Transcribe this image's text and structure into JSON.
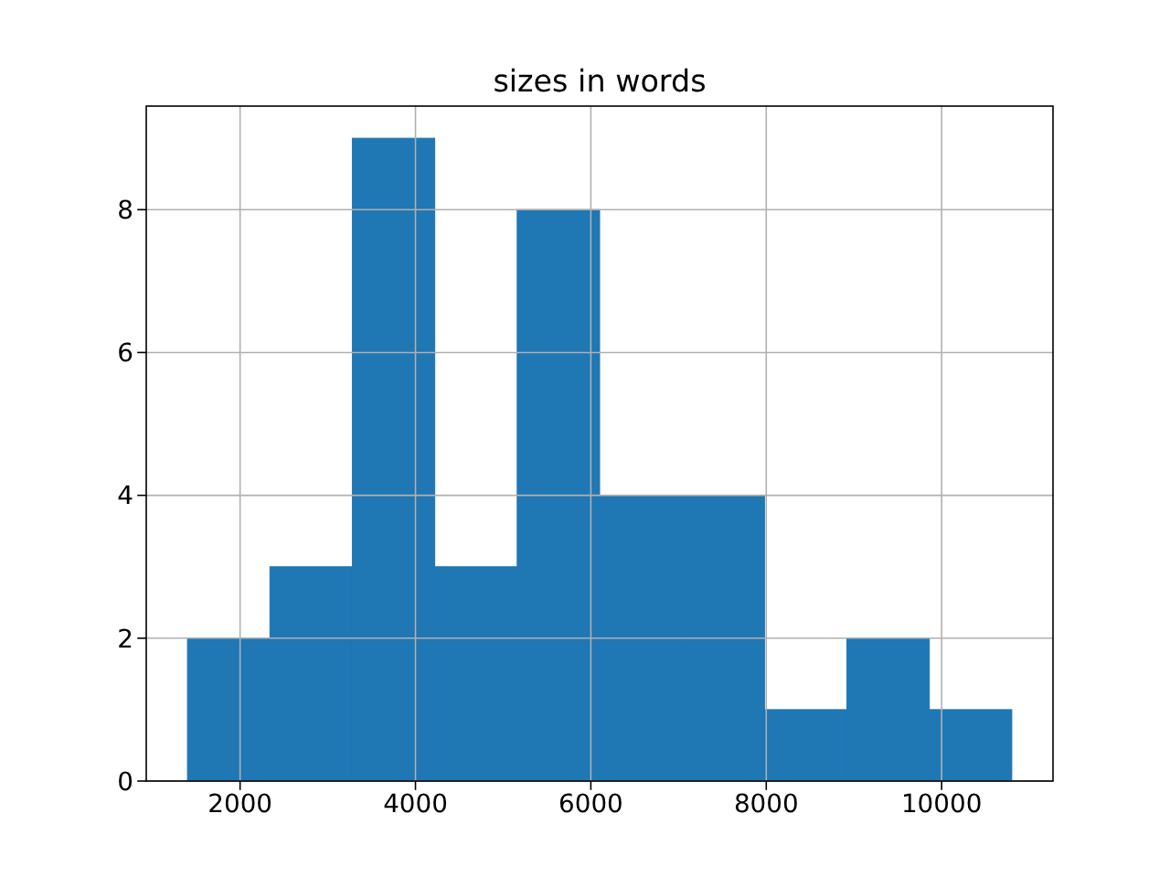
{
  "chart_data": {
    "type": "histogram",
    "title": "sizes in words",
    "bins": [
      1400,
      2340,
      3280,
      4220,
      5160,
      6100,
      7040,
      7980,
      8920,
      9860,
      10800
    ],
    "values": [
      2,
      3,
      9,
      3,
      8,
      4,
      4,
      1,
      2,
      1
    ],
    "color": "#1f77b4",
    "xlim": [
      930,
      11270
    ],
    "ylim": [
      0,
      9.45
    ],
    "xticks": [
      2000,
      4000,
      6000,
      8000,
      10000
    ],
    "yticks": [
      0,
      2,
      4,
      6,
      8
    ],
    "grid": true
  }
}
